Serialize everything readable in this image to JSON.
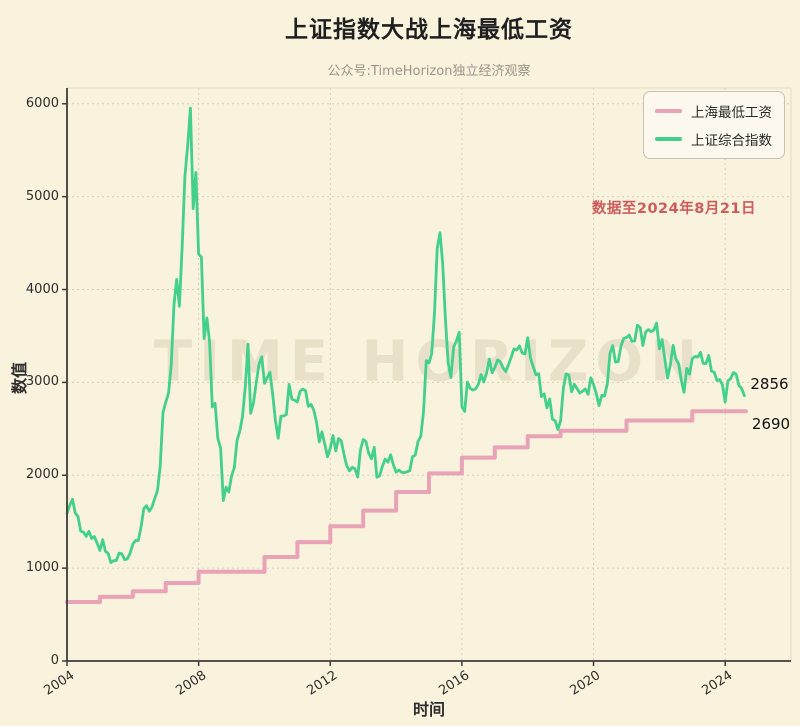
{
  "title": "上证指数大战上海最低工资",
  "subtitle": "公众号:TimeHorizon独立经济观察",
  "watermark": "TIME HORIZON",
  "annotation": {
    "text": "数据至2024年8月21日",
    "color": "#cd5c5c"
  },
  "colors": {
    "background": "#f9f2dc",
    "wage_line": "#e8a3b7",
    "index_line": "#43d08c",
    "grid": "#d9d0b6",
    "axis": "#3c3c3c"
  },
  "legend": [
    {
      "label": "上海最低工资",
      "color": "#e8a3b7"
    },
    {
      "label": "上证综合指数",
      "color": "#43d08c"
    }
  ],
  "chart_data": {
    "type": "line",
    "title": "上证指数大战上海最低工资",
    "xlabel": "时间",
    "ylabel": "数值",
    "xlim": [
      2004,
      2026
    ],
    "ylim": [
      0,
      6170
    ],
    "xticks": [
      2004,
      2008,
      2012,
      2016,
      2020,
      2024
    ],
    "yticks": [
      0,
      1000,
      2000,
      3000,
      4000,
      5000,
      6000
    ],
    "grid": true,
    "legend_position": "top-right",
    "end_labels": [
      {
        "series": "上证综合指数",
        "text": "2856"
      },
      {
        "series": "上海最低工资",
        "text": "2690"
      }
    ],
    "series": [
      {
        "name": "上海最低工资",
        "color": "#e8a3b7",
        "style": "step",
        "width": 4,
        "points": [
          [
            2004,
            635
          ],
          [
            2005,
            690
          ],
          [
            2006,
            750
          ],
          [
            2007,
            840
          ],
          [
            2008,
            960
          ],
          [
            2010,
            1120
          ],
          [
            2011,
            1280
          ],
          [
            2012,
            1450
          ],
          [
            2013,
            1620
          ],
          [
            2014,
            1820
          ],
          [
            2015,
            2020
          ],
          [
            2016,
            2190
          ],
          [
            2017,
            2300
          ],
          [
            2018,
            2420
          ],
          [
            2019,
            2480
          ],
          [
            2021,
            2590
          ],
          [
            2023,
            2690
          ],
          [
            2024.63,
            2690
          ]
        ]
      },
      {
        "name": "上证综合指数",
        "color": "#43d08c",
        "style": "line",
        "width": 2.8,
        "x_start": 2004.0,
        "x_step": 0.0833333,
        "values": [
          1590,
          1675,
          1741,
          1595,
          1555,
          1399,
          1386,
          1342,
          1396,
          1320,
          1340,
          1266,
          1191,
          1306,
          1181,
          1159,
          1060,
          1080,
          1083,
          1162,
          1155,
          1092,
          1099,
          1161,
          1258,
          1299,
          1298,
          1440,
          1641,
          1672,
          1612,
          1658,
          1752,
          1837,
          2099,
          2675,
          2786,
          2881,
          3183,
          3841,
          4109,
          3820,
          4471,
          5218,
          5552,
          5954,
          4871,
          5261,
          4383,
          4348,
          3472,
          3693,
          3433,
          2736,
          2775,
          2397,
          2293,
          1728,
          1871,
          1820,
          1990,
          2082,
          2373,
          2477,
          2632,
          2959,
          3412,
          2667,
          2779,
          2995,
          3195,
          3277,
          2989,
          3051,
          3109,
          2870,
          2592,
          2398,
          2637,
          2638,
          2655,
          2978,
          2820,
          2808,
          2790,
          2905,
          2928,
          2911,
          2743,
          2762,
          2701,
          2567,
          2359,
          2468,
          2333,
          2199,
          2292,
          2428,
          2262,
          2396,
          2372,
          2225,
          2103,
          2047,
          2086,
          2068,
          1980,
          2269,
          2385,
          2365,
          2236,
          2177,
          2300,
          1979,
          1993,
          2098,
          2174,
          2141,
          2220,
          2116,
          2033,
          2056,
          2033,
          2026,
          2039,
          2048,
          2201,
          2217,
          2364,
          2420,
          2683,
          3235,
          3210,
          3310,
          3748,
          4442,
          4612,
          4277,
          3664,
          3206,
          3053,
          3383,
          3445,
          3539,
          2738,
          2688,
          3004,
          2938,
          2917,
          2930,
          2979,
          3085,
          3005,
          3100,
          3250,
          3104,
          3159,
          3242,
          3223,
          3155,
          3117,
          3192,
          3273,
          3361,
          3349,
          3393,
          3317,
          3307,
          3481,
          3259,
          3169,
          3082,
          3095,
          2847,
          2876,
          2725,
          2821,
          2603,
          2588,
          2494,
          2585,
          2941,
          3091,
          3078,
          2899,
          2979,
          2933,
          2886,
          2905,
          2929,
          2872,
          3050,
          2977,
          2880,
          2750,
          2860,
          2852,
          2985,
          3310,
          3396,
          3218,
          3225,
          3392,
          3473,
          3483,
          3509,
          3442,
          3447,
          3615,
          3591,
          3397,
          3544,
          3568,
          3547,
          3564,
          3639,
          3361,
          3462,
          3252,
          3047,
          3186,
          3399,
          3253,
          3202,
          3024,
          2893,
          3151,
          3089,
          3255,
          3279,
          3273,
          3323,
          3205,
          3202,
          3291,
          3120,
          3110,
          3019,
          3030,
          2975,
          2789,
          3015,
          3041,
          3105,
          3087,
          2967,
          2938,
          2856
        ]
      }
    ]
  }
}
